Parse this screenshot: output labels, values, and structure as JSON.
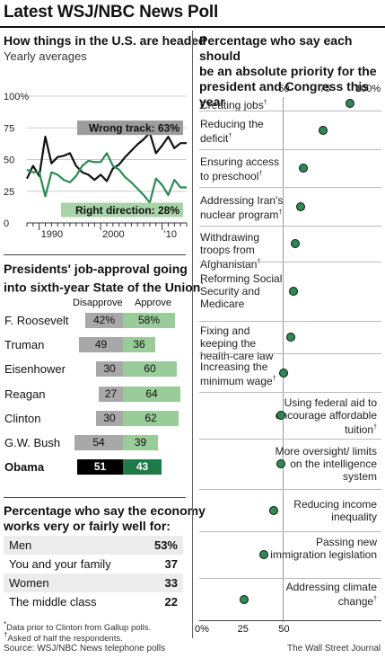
{
  "header": {
    "title": "Latest WSJ/NBC News Poll"
  },
  "trend": {
    "title": "How things in the U.S. are headed",
    "subtitle": "Yearly averages",
    "wrong_label": "Wrong track: 63%",
    "right_label": "Right direction: 28%",
    "colors": {
      "wrong": "#111111",
      "right": "#2d8a55",
      "wrong_bg": "#9c9c9c",
      "right_bg": "#a8d3a8"
    }
  },
  "approval": {
    "title_line1": "Presidents' job-approval going",
    "title_line2": "into sixth-year State of the Union",
    "title_marker": "*",
    "col_disapprove": "Disapprove",
    "col_approve": "Approve",
    "rows": [
      {
        "name": "F. Roosevelt",
        "disapprove": "42%",
        "approve": "58%",
        "d": 42,
        "a": 58
      },
      {
        "name": "Truman",
        "disapprove": "49",
        "approve": "36",
        "d": 49,
        "a": 36
      },
      {
        "name": "Eisenhower",
        "disapprove": "30",
        "approve": "60",
        "d": 30,
        "a": 60
      },
      {
        "name": "Reagan",
        "disapprove": "27",
        "approve": "64",
        "d": 27,
        "a": 64
      },
      {
        "name": "Clinton",
        "disapprove": "30",
        "approve": "62",
        "d": 30,
        "a": 62
      },
      {
        "name": "G.W. Bush",
        "disapprove": "54",
        "approve": "39",
        "d": 54,
        "a": 39
      },
      {
        "name": "Obama",
        "disapprove": "51",
        "approve": "43",
        "d": 51,
        "a": 43
      }
    ]
  },
  "economy": {
    "title_line1": "Percentage who say the economy",
    "title_line2": "works very or fairly well for:",
    "rows": [
      {
        "label": "Men",
        "value": "53%"
      },
      {
        "label": "You and your family",
        "value": "37"
      },
      {
        "label": "Women",
        "value": "33"
      },
      {
        "label": "The middle class",
        "value": "22"
      }
    ]
  },
  "footnotes": {
    "note1": "Data prior to Clinton from Gallup polls.",
    "note1_marker": "*",
    "note2": "Asked of half the respondents.",
    "note2_marker": "†",
    "source": "Source: WSJ/NBC News telephone polls",
    "credit": "The Wall Street Journal"
  },
  "priority": {
    "title_line1": "Percentage who say each should",
    "title_line2": "be an absolute priority for the",
    "title_line3": "president and Congress this year",
    "top_ticks": [
      "50",
      "75",
      "100%"
    ],
    "bottom_ticks": [
      "0%",
      "25",
      "50"
    ],
    "dot_color": "#2d8a55"
  },
  "chart_data": [
    {
      "type": "line",
      "title": "How things in the U.S. are headed",
      "subtitle": "Yearly averages",
      "x_ticks": [
        "1990",
        "2000",
        "'10"
      ],
      "y_ticks": [
        "0",
        "25",
        "50",
        "75",
        "100%"
      ],
      "ylim": [
        0,
        100
      ],
      "xlim": [
        1988,
        2014
      ],
      "series": [
        {
          "name": "Wrong track",
          "x": [
            1988,
            1989,
            1990,
            1991,
            1992,
            1993,
            1994,
            1995,
            1996,
            1997,
            1998,
            1999,
            2000,
            2001,
            2002,
            2003,
            2004,
            2005,
            2006,
            2007,
            2008,
            2009,
            2010,
            2011,
            2012,
            2013,
            2014
          ],
          "values": [
            35,
            45,
            37,
            68,
            47,
            52,
            53,
            55,
            45,
            40,
            38,
            34,
            38,
            33,
            43,
            46,
            52,
            57,
            62,
            66,
            71,
            55,
            61,
            68,
            59,
            63,
            63
          ]
        },
        {
          "name": "Right direction",
          "x": [
            1988,
            1989,
            1990,
            1991,
            1992,
            1993,
            1994,
            1995,
            1996,
            1997,
            1998,
            1999,
            2000,
            2001,
            2002,
            2003,
            2004,
            2005,
            2006,
            2007,
            2008,
            2009,
            2010,
            2011,
            2012,
            2013,
            2014
          ],
          "values": [
            42,
            40,
            40,
            21,
            40,
            38,
            34,
            32,
            37,
            45,
            49,
            48,
            48,
            55,
            45,
            42,
            36,
            32,
            27,
            22,
            16,
            35,
            30,
            22,
            34,
            28,
            28
          ]
        }
      ]
    },
    {
      "type": "bar",
      "title": "Presidents' job-approval going into sixth-year State of the Union",
      "categories": [
        "F. Roosevelt",
        "Truman",
        "Eisenhower",
        "Reagan",
        "Clinton",
        "G.W. Bush",
        "Obama"
      ],
      "series": [
        {
          "name": "Disapprove",
          "values": [
            42,
            49,
            30,
            27,
            30,
            54,
            51
          ]
        },
        {
          "name": "Approve",
          "values": [
            58,
            36,
            60,
            64,
            62,
            39,
            43
          ]
        }
      ]
    },
    {
      "type": "table",
      "title": "Percentage who say the economy works very or fairly well for:",
      "categories": [
        "Men",
        "You and your family",
        "Women",
        "The middle class"
      ],
      "values": [
        53,
        37,
        33,
        22
      ]
    },
    {
      "type": "scatter",
      "title": "Percentage who say each should be an absolute priority for the president and Congress this year",
      "xlim": [
        0,
        100
      ],
      "items": [
        {
          "label": "Creating jobs",
          "marker": "†",
          "value": 91
        },
        {
          "label": "Reducing the deficit",
          "marker": "†",
          "value": 75
        },
        {
          "label": "Ensuring access to preschool",
          "marker": "†",
          "value": 63
        },
        {
          "label": "Addressing Iran's nuclear program",
          "marker": "†",
          "value": 61
        },
        {
          "label": "Withdrawing troops from Afghanistan",
          "marker": "†",
          "value": 58
        },
        {
          "label": "Reforming Social Security and Medicare",
          "marker": "",
          "value": 57
        },
        {
          "label": "Fixing and keeping the health-care law",
          "marker": "",
          "value": 55
        },
        {
          "label": "Increasing the minimum wage",
          "marker": "†",
          "value": 51
        },
        {
          "label": "Using federal aid to encourage affordable tuition",
          "marker": "†",
          "value": 49
        },
        {
          "label": "More oversight/ limits on the intelligence system",
          "marker": "",
          "value": 49
        },
        {
          "label": "Reducing income inequality",
          "marker": "",
          "value": 45
        },
        {
          "label": "Passing new immigration legislation",
          "marker": "",
          "value": 39
        },
        {
          "label": "Addressing climate change",
          "marker": "†",
          "value": 27
        }
      ]
    }
  ]
}
